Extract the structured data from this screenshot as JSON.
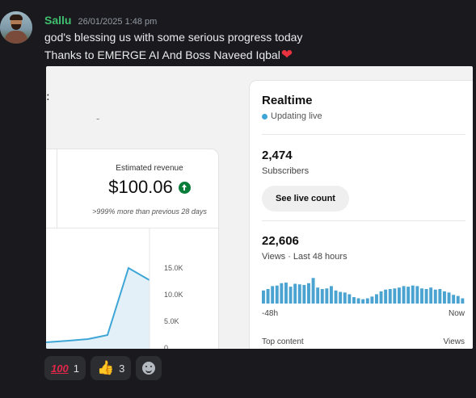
{
  "message": {
    "username": "Sallu",
    "timestamp": "26/01/2025 1:48 pm",
    "line1": "god's blessing us with some serious progress today",
    "line2": "Thanks to EMERGE AI And Boss Naveed Iqbal"
  },
  "screenshot": {
    "left_mark": ":",
    "left_dash": "-",
    "revenue": {
      "label": "Estimated revenue",
      "value": "$100.06",
      "compare": ">999% more than previous 28 days"
    },
    "chart_ticks": [
      "15.0K",
      "10.0K",
      "5.0K",
      "0"
    ],
    "realtime": {
      "title": "Realtime",
      "status": "Updating live",
      "subscribers_value": "2,474",
      "subscribers_label": "Subscribers",
      "live_count_button": "See live count",
      "views_value": "22,606",
      "views_label": "Views · Last 48 hours",
      "axis_start": "-48h",
      "axis_end": "Now",
      "top_content_label": "Top content",
      "top_content_views": "Views",
      "bar_levels": [
        0.45,
        0.5,
        0.6,
        0.62,
        0.7,
        0.72,
        0.58,
        0.68,
        0.66,
        0.64,
        0.7,
        0.88,
        0.55,
        0.5,
        0.52,
        0.6,
        0.45,
        0.4,
        0.38,
        0.32,
        0.22,
        0.18,
        0.15,
        0.18,
        0.24,
        0.32,
        0.42,
        0.48,
        0.5,
        0.52,
        0.55,
        0.6,
        0.58,
        0.62,
        0.6,
        0.52,
        0.5,
        0.55,
        0.48,
        0.5,
        0.42,
        0.38,
        0.3,
        0.26,
        0.18
      ]
    }
  },
  "reactions": [
    {
      "emoji": "💯",
      "count": "1"
    },
    {
      "emoji": "👍",
      "count": "3"
    }
  ]
}
